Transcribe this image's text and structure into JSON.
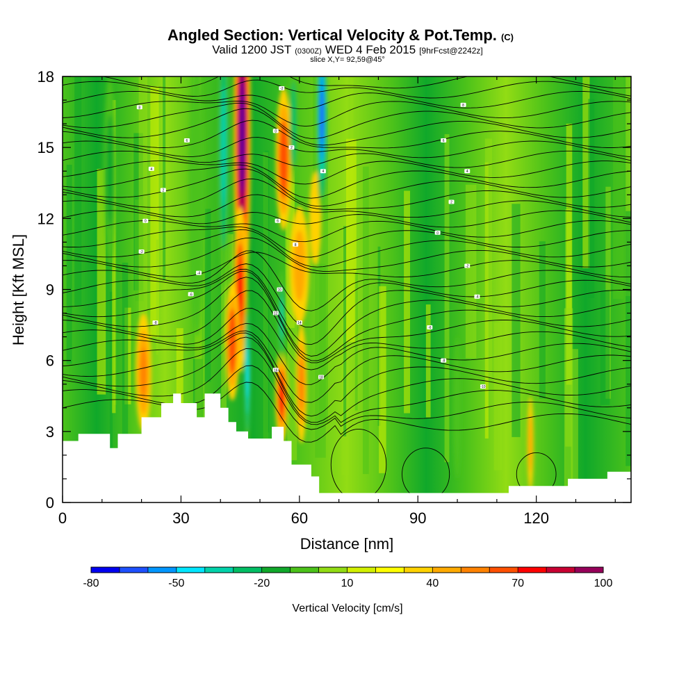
{
  "title": {
    "main": "Angled Section: Vertical Velocity & Pot.Temp.",
    "main_unit": "(C)",
    "valid_prefix": "Valid 1200 JST",
    "valid_utc": "(0300Z)",
    "valid_date": "WED 4 Feb 2015",
    "forecast": "[9hrFcst@2242z]",
    "slice": "slice X,Y= 92,59@45°"
  },
  "chart_data": {
    "type": "heatmap",
    "xlabel": "Distance [nm]",
    "ylabel": "Height [Kft MSL]",
    "xlim": [
      0,
      144
    ],
    "ylim": [
      0,
      18
    ],
    "x_ticks": [
      0,
      30,
      60,
      90,
      120
    ],
    "y_ticks": [
      0,
      3,
      6,
      9,
      12,
      15,
      18
    ],
    "colorbar": {
      "label": "Vertical Velocity [cm/s]",
      "tick_values": [
        -80,
        -50,
        -20,
        10,
        40,
        70,
        100
      ],
      "tick_labels": [
        "-80",
        "-50",
        "-20",
        "10",
        "40",
        "70",
        "100"
      ],
      "colors": [
        "#0000f0",
        "#1e50ff",
        "#0096ff",
        "#00e6ff",
        "#00d2aa",
        "#00be64",
        "#10a82a",
        "#4cc21a",
        "#92dc14",
        "#d2f000",
        "#ffff00",
        "#ffd200",
        "#ffaa00",
        "#ff8200",
        "#ff5000",
        "#ff0000",
        "#c80032",
        "#96005a",
        "#640096"
      ]
    },
    "terrain_kft": [
      [
        0,
        2.6
      ],
      [
        4,
        2.6
      ],
      [
        4,
        2.9
      ],
      [
        12,
        2.9
      ],
      [
        12,
        2.3
      ],
      [
        14,
        2.3
      ],
      [
        14,
        2.9
      ],
      [
        20,
        2.9
      ],
      [
        20,
        3.6
      ],
      [
        25,
        3.6
      ],
      [
        25,
        4.2
      ],
      [
        28,
        4.2
      ],
      [
        28,
        4.6
      ],
      [
        30,
        4.6
      ],
      [
        30,
        4.2
      ],
      [
        34,
        4.2
      ],
      [
        34,
        3.6
      ],
      [
        36,
        3.6
      ],
      [
        36,
        4.6
      ],
      [
        40,
        4.6
      ],
      [
        40,
        4.0
      ],
      [
        42,
        4.0
      ],
      [
        42,
        3.4
      ],
      [
        44,
        3.4
      ],
      [
        44,
        3.0
      ],
      [
        47,
        3.0
      ],
      [
        47,
        2.7
      ],
      [
        53,
        2.7
      ],
      [
        53,
        3.2
      ],
      [
        56,
        3.2
      ],
      [
        56,
        2.6
      ],
      [
        58,
        2.6
      ],
      [
        58,
        1.6
      ],
      [
        63,
        1.6
      ],
      [
        63,
        1.1
      ],
      [
        65,
        1.1
      ],
      [
        65,
        0.4
      ],
      [
        113,
        0.4
      ],
      [
        113,
        0.7
      ],
      [
        128,
        0.7
      ],
      [
        128,
        1.0
      ],
      [
        138,
        1.0
      ],
      [
        138,
        1.3
      ],
      [
        144,
        1.3
      ]
    ],
    "updrafts": [
      {
        "x": 45.5,
        "y": 15.5,
        "w": 2.2,
        "h": 7.5,
        "value": 100
      },
      {
        "x": 45,
        "y": 9.0,
        "w": 1.8,
        "h": 3.5,
        "value": 60
      },
      {
        "x": 43,
        "y": 6.8,
        "w": 1.8,
        "h": 2.5,
        "value": 55
      },
      {
        "x": 55.5,
        "y": 4.5,
        "w": 1.6,
        "h": 2.0,
        "value": 65
      },
      {
        "x": 56,
        "y": 14.5,
        "w": 2.0,
        "h": 3.0,
        "value": 55
      },
      {
        "x": 20.5,
        "y": 5.5,
        "w": 2.0,
        "h": 2.5,
        "value": 40
      },
      {
        "x": 60,
        "y": 10.0,
        "w": 2.5,
        "h": 2.5,
        "value": 30
      },
      {
        "x": 60.5,
        "y": 5.0,
        "w": 1.4,
        "h": 2.5,
        "value": 40
      },
      {
        "x": 64,
        "y": 12.0,
        "w": 1.5,
        "h": 2.0,
        "value": 25
      },
      {
        "x": 118.5,
        "y": 2.5,
        "w": 0.8,
        "h": 2.0,
        "value": 35
      }
    ],
    "downdrafts": [
      {
        "x": 40.8,
        "y": 15.0,
        "w": 1.4,
        "h": 6.0,
        "value": -50
      },
      {
        "x": 46.8,
        "y": 5.5,
        "w": 0.8,
        "h": 3.2,
        "value": -55
      },
      {
        "x": 55.5,
        "y": 7.8,
        "w": 0.8,
        "h": 2.0,
        "value": -50
      },
      {
        "x": 65.7,
        "y": 16.3,
        "w": 1.4,
        "h": 4.2,
        "value": -80
      },
      {
        "x": 58.5,
        "y": 16.0,
        "w": 1.0,
        "h": 2.5,
        "value": -40
      },
      {
        "x": 12,
        "y": 14.0,
        "w": 1.5,
        "h": 4.0,
        "value": -25
      },
      {
        "x": 34,
        "y": 13.0,
        "w": 2.0,
        "h": 6.0,
        "value": -20
      },
      {
        "x": 100,
        "y": 4.0,
        "w": 1.0,
        "h": 3.0,
        "value": -20
      }
    ],
    "isentrope_labels": [
      {
        "x": 19.5,
        "y": 16.7,
        "text": "8"
      },
      {
        "x": 31.5,
        "y": 15.3,
        "text": "6"
      },
      {
        "x": 22.5,
        "y": 14.1,
        "text": "4"
      },
      {
        "x": 25.5,
        "y": 13.2,
        "text": "2"
      },
      {
        "x": 21.0,
        "y": 11.9,
        "text": "0"
      },
      {
        "x": 20.0,
        "y": 10.6,
        "text": "-2"
      },
      {
        "x": 34.5,
        "y": 9.7,
        "text": "-4"
      },
      {
        "x": 32.5,
        "y": 8.8,
        "text": "-6"
      },
      {
        "x": 23.5,
        "y": 7.6,
        "text": "-8"
      },
      {
        "x": 55.5,
        "y": 17.5,
        "text": "-2"
      },
      {
        "x": 54.0,
        "y": 15.7,
        "text": "0"
      },
      {
        "x": 58.0,
        "y": 15.0,
        "text": "2"
      },
      {
        "x": 66.0,
        "y": 14.0,
        "text": "4"
      },
      {
        "x": 54.5,
        "y": 11.9,
        "text": "6"
      },
      {
        "x": 59.0,
        "y": 10.9,
        "text": "8"
      },
      {
        "x": 55.0,
        "y": 9.0,
        "text": "10"
      },
      {
        "x": 54.0,
        "y": 8.0,
        "text": "12"
      },
      {
        "x": 60.0,
        "y": 7.6,
        "text": "14"
      },
      {
        "x": 54.0,
        "y": 5.6,
        "text": "16"
      },
      {
        "x": 65.5,
        "y": 5.3,
        "text": "18"
      },
      {
        "x": 101.5,
        "y": 16.8,
        "text": "8"
      },
      {
        "x": 96.5,
        "y": 15.3,
        "text": "6"
      },
      {
        "x": 102.5,
        "y": 14.0,
        "text": "4"
      },
      {
        "x": 98.5,
        "y": 12.7,
        "text": "2"
      },
      {
        "x": 95.0,
        "y": 11.4,
        "text": "0"
      },
      {
        "x": 102.5,
        "y": 10.0,
        "text": "-2"
      },
      {
        "x": 105.0,
        "y": 8.7,
        "text": "-4"
      },
      {
        "x": 93.0,
        "y": 7.4,
        "text": "-6"
      },
      {
        "x": 96.5,
        "y": 6.0,
        "text": "-8"
      },
      {
        "x": 106.5,
        "y": 4.9,
        "text": "-10"
      }
    ]
  }
}
